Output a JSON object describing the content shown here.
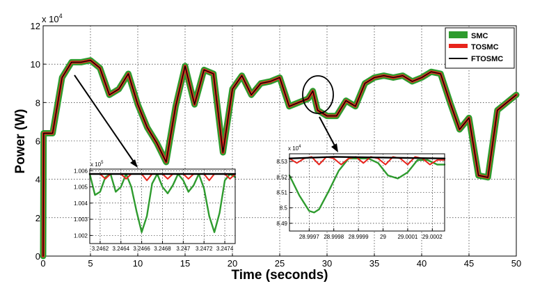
{
  "chart_data": {
    "type": "line",
    "xlabel": "Time (seconds)",
    "ylabel": "Power (W)",
    "y_multiplier_label": "x 10",
    "y_multiplier_exp": "4",
    "xlim": [
      0,
      50
    ],
    "ylim": [
      0,
      12
    ],
    "xticks": [
      0,
      5,
      10,
      15,
      20,
      25,
      30,
      35,
      40,
      45,
      50
    ],
    "yticks": [
      0,
      2,
      4,
      6,
      8,
      10,
      12
    ],
    "grid": true,
    "legend_position": "top-right",
    "legend": [
      "SMC",
      "TOSMC",
      "FTOSMC"
    ],
    "series_colors": {
      "SMC": "#2e9b2e",
      "TOSMC": "#e8241c",
      "FTOSMC": "#000000"
    },
    "main_series": {
      "x": [
        0,
        0.05,
        1,
        2,
        3,
        4,
        5,
        6,
        7,
        8,
        9,
        10,
        11,
        12,
        13,
        14,
        15,
        16,
        17,
        18,
        19,
        20,
        21,
        22,
        23,
        24,
        25,
        26,
        27,
        28,
        28.5,
        29,
        30,
        31,
        32,
        33,
        34,
        35,
        36,
        37,
        38,
        39,
        40,
        41,
        42,
        43,
        44,
        45,
        46,
        47,
        48,
        49,
        50
      ],
      "y": [
        0,
        6.4,
        6.4,
        9.3,
        10.1,
        10.1,
        10.2,
        9.8,
        8.4,
        8.7,
        9.5,
        7.9,
        6.7,
        5.9,
        4.9,
        7.8,
        9.9,
        7.9,
        9.7,
        9.5,
        5.4,
        8.7,
        9.4,
        8.4,
        9.0,
        9.1,
        9.3,
        7.8,
        8.0,
        8.2,
        8.6,
        7.6,
        7.3,
        7.3,
        8.1,
        7.8,
        9.0,
        9.3,
        9.4,
        9.3,
        9.4,
        9.1,
        9.3,
        9.6,
        9.5,
        8.0,
        6.6,
        7.2,
        4.2,
        4.1,
        7.6,
        8.0,
        8.4
      ]
    },
    "inset_left": {
      "multiplier_label": "x 10",
      "multiplier_exp": "5",
      "xlim": [
        3.2461,
        3.2475
      ],
      "ylim": [
        1.0015,
        1.0061
      ],
      "xticks": [
        3.2462,
        3.2464,
        3.2466,
        3.2468,
        3.247,
        3.2472,
        3.2474
      ],
      "xtick_labels": [
        "3.2462",
        "3.2464",
        "3.2466",
        "3.2468",
        "3.247",
        "3.2472",
        "3.2474"
      ],
      "yticks": [
        1.002,
        1.003,
        1.004,
        1.005,
        1.006
      ],
      "ytick_labels": [
        "1.002",
        "1.003",
        "1.004",
        "1.005",
        "1.006"
      ],
      "smc": {
        "x": [
          3.2461,
          3.24615,
          3.2462,
          3.24625,
          3.2463,
          3.24635,
          3.2464,
          3.24645,
          3.2465,
          3.24655,
          3.2466,
          3.24665,
          3.2467,
          3.24675,
          3.2468,
          3.24685,
          3.2469,
          3.24695,
          3.247,
          3.24705,
          3.2471,
          3.24715,
          3.2472,
          3.24725,
          3.2473,
          3.24735,
          3.2474,
          3.24745,
          3.2475
        ],
        "y": [
          1.0058,
          1.0045,
          1.0047,
          1.0056,
          1.0058,
          1.0047,
          1.005,
          1.0058,
          1.005,
          1.0035,
          1.0022,
          1.0032,
          1.0052,
          1.0058,
          1.005,
          1.0046,
          1.0051,
          1.0058,
          1.0054,
          1.0047,
          1.0051,
          1.0058,
          1.0049,
          1.0032,
          1.0022,
          1.0034,
          1.0054,
          1.0058,
          1.0056
        ]
      },
      "tosmc": {
        "x": [
          3.2461,
          3.2462,
          3.24625,
          3.2463,
          3.24635,
          3.2464,
          3.24645,
          3.2465,
          3.2466,
          3.24665,
          3.2467,
          3.2468,
          3.24685,
          3.2469,
          3.247,
          3.24705,
          3.2471,
          3.2472,
          3.24725,
          3.2473,
          3.2474,
          3.24745,
          3.2475
        ],
        "y": [
          1.0058,
          1.0058,
          1.0055,
          1.0058,
          1.0058,
          1.0058,
          1.0055,
          1.0058,
          1.0058,
          1.0054,
          1.0058,
          1.0058,
          1.0055,
          1.0058,
          1.0058,
          1.0055,
          1.0058,
          1.0058,
          1.0054,
          1.0058,
          1.0058,
          1.0055,
          1.0058
        ]
      },
      "ftosmc": {
        "x": [
          3.2461,
          3.2475
        ],
        "y": [
          1.0058,
          1.0058
        ]
      }
    },
    "inset_right": {
      "multiplier_label": "x 10",
      "multiplier_exp": "4",
      "xlim": [
        28.99962,
        29.00025
      ],
      "ylim": [
        8.485,
        8.535
      ],
      "xticks": [
        28.9997,
        28.9998,
        28.9999,
        29.0,
        29.0001,
        29.0002
      ],
      "xtick_labels": [
        "28.9997",
        "28.9998",
        "28.9999",
        "29",
        "29.0001",
        "29.0002"
      ],
      "yticks": [
        8.49,
        8.5,
        8.51,
        8.52,
        8.53
      ],
      "ytick_labels": [
        "8.49",
        "8.5",
        "8.51",
        "8.52",
        "8.53"
      ],
      "smc": {
        "x": [
          28.99962,
          28.99966,
          28.9997,
          28.99972,
          28.99974,
          28.99978,
          28.99982,
          28.99986,
          28.9999,
          28.99994,
          28.99998,
          29.00002,
          29.00006,
          29.0001,
          29.00014,
          29.00018,
          29.00022,
          29.00025
        ],
        "y": [
          8.521,
          8.508,
          8.498,
          8.497,
          8.499,
          8.511,
          8.524,
          8.532,
          8.532,
          8.532,
          8.529,
          8.521,
          8.519,
          8.523,
          8.531,
          8.531,
          8.528,
          8.528
        ]
      },
      "tosmc": {
        "x": [
          28.99962,
          28.99965,
          28.99968,
          28.99971,
          28.99974,
          28.99977,
          28.9998,
          28.99983,
          28.99986,
          28.99989,
          28.99992,
          28.99995,
          28.99998,
          29.00001,
          29.00004,
          29.00007,
          29.0001,
          29.00013,
          29.00016,
          29.00019,
          29.00022,
          29.00025
        ],
        "y": [
          8.532,
          8.529,
          8.532,
          8.533,
          8.528,
          8.533,
          8.532,
          8.528,
          8.532,
          8.533,
          8.529,
          8.533,
          8.532,
          8.528,
          8.533,
          8.532,
          8.528,
          8.533,
          8.532,
          8.528,
          8.531,
          8.531
        ]
      },
      "ftosmc": {
        "x": [
          28.99962,
          28.9998,
          29.00025
        ],
        "y": [
          8.532,
          8.533,
          8.532
        ]
      }
    }
  }
}
